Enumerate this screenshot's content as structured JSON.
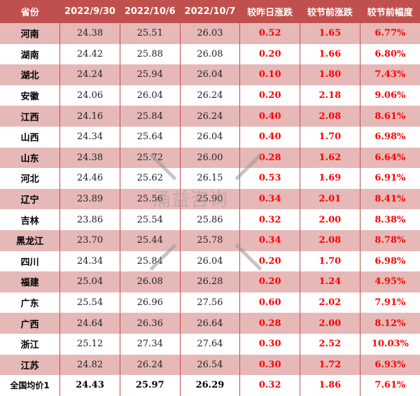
{
  "headers": [
    "省份",
    "2022/9/30",
    "2022/10/6",
    "2022/10/7",
    "较昨日涨跌",
    "较节前涨跌",
    "较节前幅度"
  ],
  "rows": [
    [
      "河南",
      "24.38",
      "25.51",
      "26.03",
      "0.52",
      "1.65",
      "6.77%"
    ],
    [
      "湖南",
      "24.42",
      "25.88",
      "26.08",
      "0.20",
      "1.66",
      "6.80%"
    ],
    [
      "湖北",
      "24.24",
      "25.94",
      "26.04",
      "0.10",
      "1.80",
      "7.43%"
    ],
    [
      "安徽",
      "24.06",
      "26.04",
      "26.24",
      "0.20",
      "2.18",
      "9.06%"
    ],
    [
      "江西",
      "24.16",
      "25.84",
      "26.24",
      "0.40",
      "2.08",
      "8.61%"
    ],
    [
      "山西",
      "24.34",
      "25.64",
      "26.04",
      "0.40",
      "1.70",
      "6.98%"
    ],
    [
      "山东",
      "24.38",
      "25.72",
      "26.00",
      "0.28",
      "1.62",
      "6.64%"
    ],
    [
      "河北",
      "24.46",
      "25.62",
      "26.15",
      "0.53",
      "1.69",
      "6.91%"
    ],
    [
      "辽宁",
      "23.89",
      "25.56",
      "25.90",
      "0.34",
      "2.01",
      "8.41%"
    ],
    [
      "吉林",
      "23.86",
      "25.54",
      "25.86",
      "0.32",
      "2.00",
      "8.38%"
    ],
    [
      "黑龙江",
      "23.70",
      "25.44",
      "25.78",
      "0.34",
      "2.08",
      "8.78%"
    ],
    [
      "四川",
      "24.34",
      "25.84",
      "26.04",
      "0.20",
      "1.70",
      "6.98%"
    ],
    [
      "福建",
      "25.04",
      "26.08",
      "26.28",
      "0.20",
      "1.24",
      "4.95%"
    ],
    [
      "广东",
      "25.54",
      "26.96",
      "27.56",
      "0.60",
      "2.02",
      "7.91%"
    ],
    [
      "广西",
      "24.64",
      "26.36",
      "26.64",
      "0.28",
      "2.00",
      "8.12%"
    ],
    [
      "浙江",
      "25.12",
      "27.34",
      "27.64",
      "0.30",
      "2.52",
      "10.03%"
    ],
    [
      "江苏",
      "24.82",
      "26.24",
      "26.54",
      "0.30",
      "1.72",
      "6.93%"
    ]
  ],
  "total": [
    "全国均价1",
    "24.43",
    "25.97",
    "26.29",
    "0.32",
    "1.86",
    "7.61%"
  ],
  "watermark": "涌益咨询",
  "colors": {
    "header": "#c0504d",
    "shade": "#e6b8b7",
    "positive": "#ff0000"
  }
}
